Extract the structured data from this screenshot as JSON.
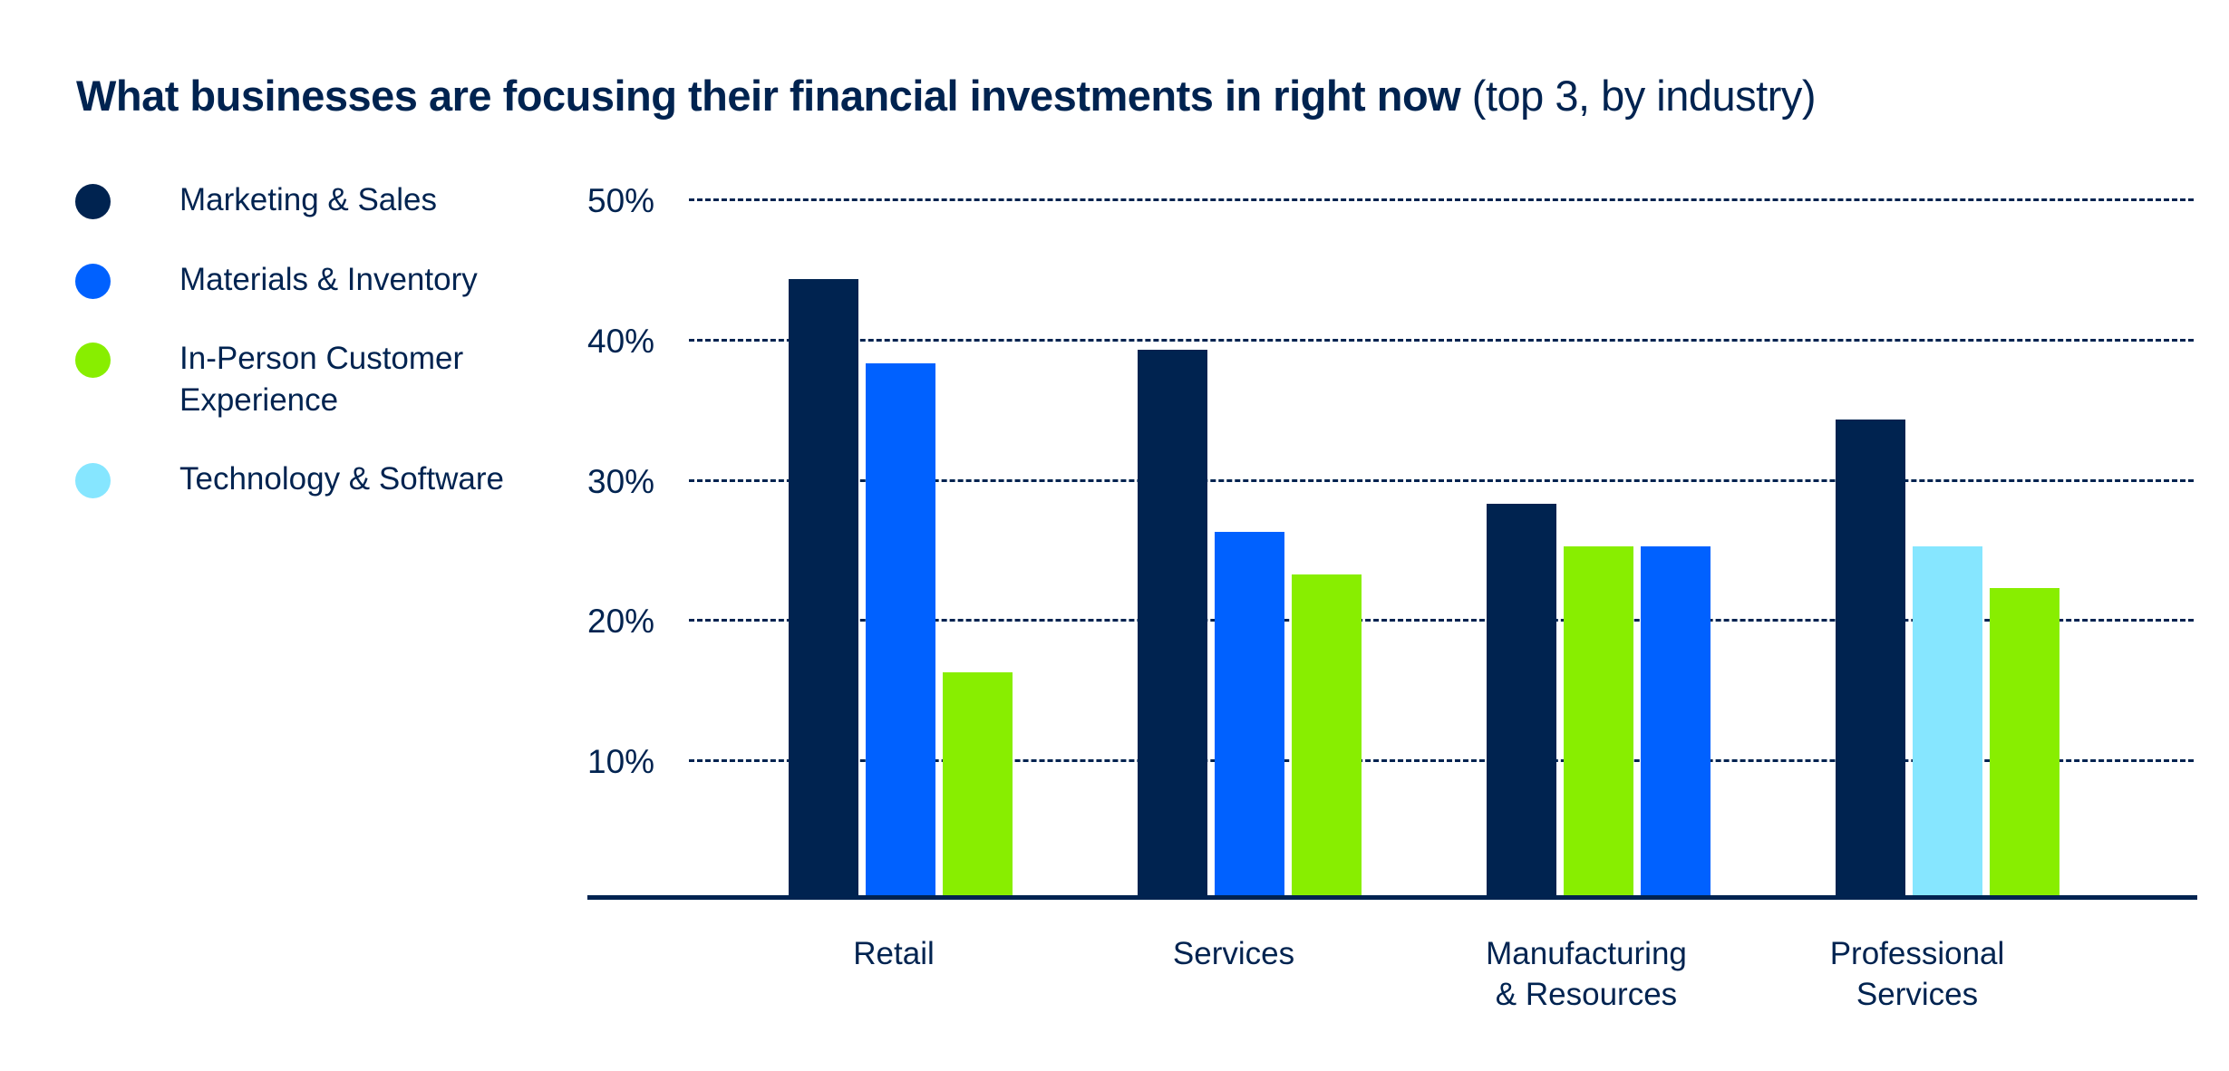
{
  "title": {
    "bold": "What businesses are focusing their financial investments in right now",
    "sub": " (top 3, by industry)"
  },
  "legend": [
    {
      "label": "Marketing & Sales",
      "color": "#002350"
    },
    {
      "label": "Materials & Inventory",
      "color": "#0061FF"
    },
    {
      "label": "In-Person Customer Experience",
      "color": "#88EE00"
    },
    {
      "label": "Technology & Software",
      "color": "#86E6FF"
    }
  ],
  "y_ticks": [
    "50%",
    "40%",
    "30%",
    "20%",
    "10%"
  ],
  "x_labels": [
    "Retail",
    "Services",
    "Manufacturing\n& Resources",
    "Professional\nServices"
  ],
  "chart_data": {
    "type": "bar",
    "title": "What businesses are focusing their financial investments in right now (top 3, by industry)",
    "xlabel": "",
    "ylabel": "",
    "ylim": [
      0,
      50
    ],
    "y_ticks": [
      10,
      20,
      30,
      40,
      50
    ],
    "grid": "horizontal dashed",
    "legend_position": "left",
    "categories": [
      "Retail",
      "Services",
      "Manufacturing & Resources",
      "Professional Services"
    ],
    "series": [
      {
        "name": "Marketing & Sales",
        "color": "#002350",
        "values": [
          44,
          39,
          28,
          34
        ]
      },
      {
        "name": "Materials & Inventory",
        "color": "#0061FF",
        "values": [
          38,
          26,
          25,
          null
        ]
      },
      {
        "name": "In-Person Customer Experience",
        "color": "#88EE00",
        "values": [
          16,
          23,
          25,
          22
        ]
      },
      {
        "name": "Technology & Software",
        "color": "#86E6FF",
        "values": [
          null,
          null,
          null,
          25
        ]
      }
    ],
    "bar_order_per_category": [
      [
        "Marketing & Sales",
        "Materials & Inventory",
        "In-Person Customer Experience"
      ],
      [
        "Marketing & Sales",
        "Materials & Inventory",
        "In-Person Customer Experience"
      ],
      [
        "Marketing & Sales",
        "In-Person Customer Experience",
        "Materials & Inventory"
      ],
      [
        "Marketing & Sales",
        "Technology & Software",
        "In-Person Customer Experience"
      ]
    ]
  }
}
